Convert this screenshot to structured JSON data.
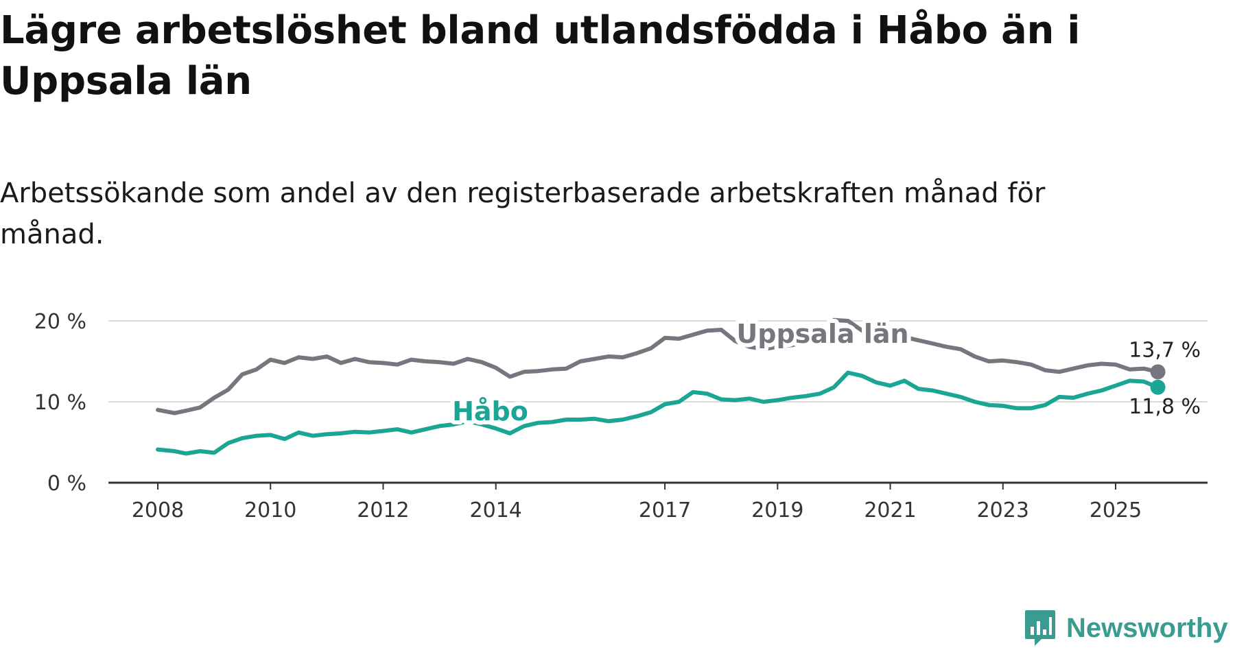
{
  "title": "Lägre arbetslöshet bland utlandsfödda i Håbo än i Uppsala län",
  "subtitle": "Arbetssökande som andel av den registerbaserade arbetskraften månad för månad.",
  "brand": {
    "name": "Newsworthy",
    "icon": "bar-chart-icon"
  },
  "chart_data": {
    "type": "line",
    "title": "Lägre arbetslöshet bland utlandsfödda i Håbo än i Uppsala län",
    "xlabel": "",
    "ylabel": "",
    "xlim": [
      2008.0,
      2026.3
    ],
    "ylim": [
      0,
      20
    ],
    "yticks": [
      0,
      10,
      20
    ],
    "ytick_labels": [
      "0 %",
      "10 %",
      "20 %"
    ],
    "xticks": [
      2008,
      2010,
      2012,
      2014,
      2017,
      2019,
      2021,
      2023,
      2025
    ],
    "xtick_labels": [
      "2008",
      "2010",
      "2012",
      "2014",
      "2017",
      "2019",
      "2021",
      "2023",
      "2025"
    ],
    "grid": true,
    "legend": "inline labels",
    "colors": {
      "uppsala": "#76767e",
      "habo": "#1aa595"
    },
    "series": [
      {
        "name": "Uppsala län",
        "color": "#76767e",
        "end_label": "13,7 %",
        "x": [
          2008.0,
          2008.3,
          2008.5,
          2008.75,
          2009.0,
          2009.25,
          2009.5,
          2009.75,
          2010.0,
          2010.25,
          2010.5,
          2010.75,
          2011.0,
          2011.25,
          2011.5,
          2011.75,
          2012.0,
          2012.25,
          2012.5,
          2012.75,
          2013.0,
          2013.25,
          2013.5,
          2013.75,
          2014.0,
          2014.25,
          2014.5,
          2014.75,
          2015.0,
          2015.25,
          2015.5,
          2015.75,
          2016.0,
          2016.25,
          2016.5,
          2016.75,
          2017.0,
          2017.25,
          2017.5,
          2017.75,
          2018.0,
          2018.25,
          2018.5,
          2018.75,
          2019.0,
          2019.25,
          2019.5,
          2019.75,
          2020.0,
          2020.25,
          2020.5,
          2020.75,
          2021.0,
          2021.25,
          2021.5,
          2021.75,
          2022.0,
          2022.25,
          2022.5,
          2022.75,
          2023.0,
          2023.25,
          2023.5,
          2023.75,
          2024.0,
          2024.25,
          2024.5,
          2024.75,
          2025.0,
          2025.25,
          2025.5,
          2025.75
        ],
        "y": [
          9.0,
          8.6,
          8.9,
          9.3,
          10.5,
          11.5,
          13.4,
          14.0,
          15.2,
          14.8,
          15.5,
          15.3,
          15.6,
          14.8,
          15.3,
          14.9,
          14.8,
          14.6,
          15.2,
          15.0,
          14.9,
          14.7,
          15.3,
          14.9,
          14.2,
          13.1,
          13.7,
          13.8,
          14.0,
          14.1,
          15.0,
          15.3,
          15.6,
          15.5,
          16.0,
          16.6,
          17.9,
          17.8,
          18.3,
          18.8,
          18.9,
          17.5,
          16.8,
          16.5,
          16.8,
          17.0,
          17.4,
          17.8,
          20.1,
          20.0,
          18.8,
          18.0,
          18.6,
          18.0,
          17.6,
          17.2,
          16.8,
          16.5,
          15.6,
          15.0,
          15.1,
          14.9,
          14.6,
          13.9,
          13.7,
          14.1,
          14.5,
          14.7,
          14.6,
          14.0,
          14.1,
          13.7
        ]
      },
      {
        "name": "Håbo",
        "color": "#1aa595",
        "end_label": "11,8 %",
        "x": [
          2008.0,
          2008.3,
          2008.5,
          2008.75,
          2009.0,
          2009.25,
          2009.5,
          2009.75,
          2010.0,
          2010.25,
          2010.5,
          2010.75,
          2011.0,
          2011.25,
          2011.5,
          2011.75,
          2012.0,
          2012.25,
          2012.5,
          2012.75,
          2013.0,
          2013.25,
          2013.5,
          2013.75,
          2014.0,
          2014.25,
          2014.5,
          2014.75,
          2015.0,
          2015.25,
          2015.5,
          2015.75,
          2016.0,
          2016.25,
          2016.5,
          2016.75,
          2017.0,
          2017.25,
          2017.5,
          2017.75,
          2018.0,
          2018.25,
          2018.5,
          2018.75,
          2019.0,
          2019.25,
          2019.5,
          2019.75,
          2020.0,
          2020.25,
          2020.5,
          2020.75,
          2021.0,
          2021.25,
          2021.5,
          2021.75,
          2022.0,
          2022.25,
          2022.5,
          2022.75,
          2023.0,
          2023.25,
          2023.5,
          2023.75,
          2024.0,
          2024.25,
          2024.5,
          2024.75,
          2025.0,
          2025.25,
          2025.5,
          2025.75
        ],
        "y": [
          4.1,
          3.9,
          3.6,
          3.9,
          3.7,
          4.9,
          5.5,
          5.8,
          5.9,
          5.4,
          6.2,
          5.8,
          6.0,
          6.1,
          6.3,
          6.2,
          6.4,
          6.6,
          6.2,
          6.6,
          7.0,
          7.2,
          7.6,
          7.2,
          6.7,
          6.1,
          7.0,
          7.4,
          7.5,
          7.8,
          7.8,
          7.9,
          7.6,
          7.8,
          8.2,
          8.7,
          9.7,
          10.0,
          11.2,
          11.0,
          10.3,
          10.2,
          10.4,
          10.0,
          10.2,
          10.5,
          10.7,
          11.0,
          11.8,
          13.6,
          13.2,
          12.4,
          12.0,
          12.6,
          11.6,
          11.4,
          11.0,
          10.6,
          10.0,
          9.6,
          9.5,
          9.2,
          9.2,
          9.6,
          10.6,
          10.5,
          11.0,
          11.4,
          12.0,
          12.6,
          12.5,
          11.8
        ]
      }
    ],
    "annotations": [
      {
        "text": "Uppsala län",
        "series": "Uppsala län",
        "x": 2019.8,
        "y": 17.3
      },
      {
        "text": "Håbo",
        "series": "Håbo",
        "x": 2013.9,
        "y": 7.7
      }
    ]
  }
}
